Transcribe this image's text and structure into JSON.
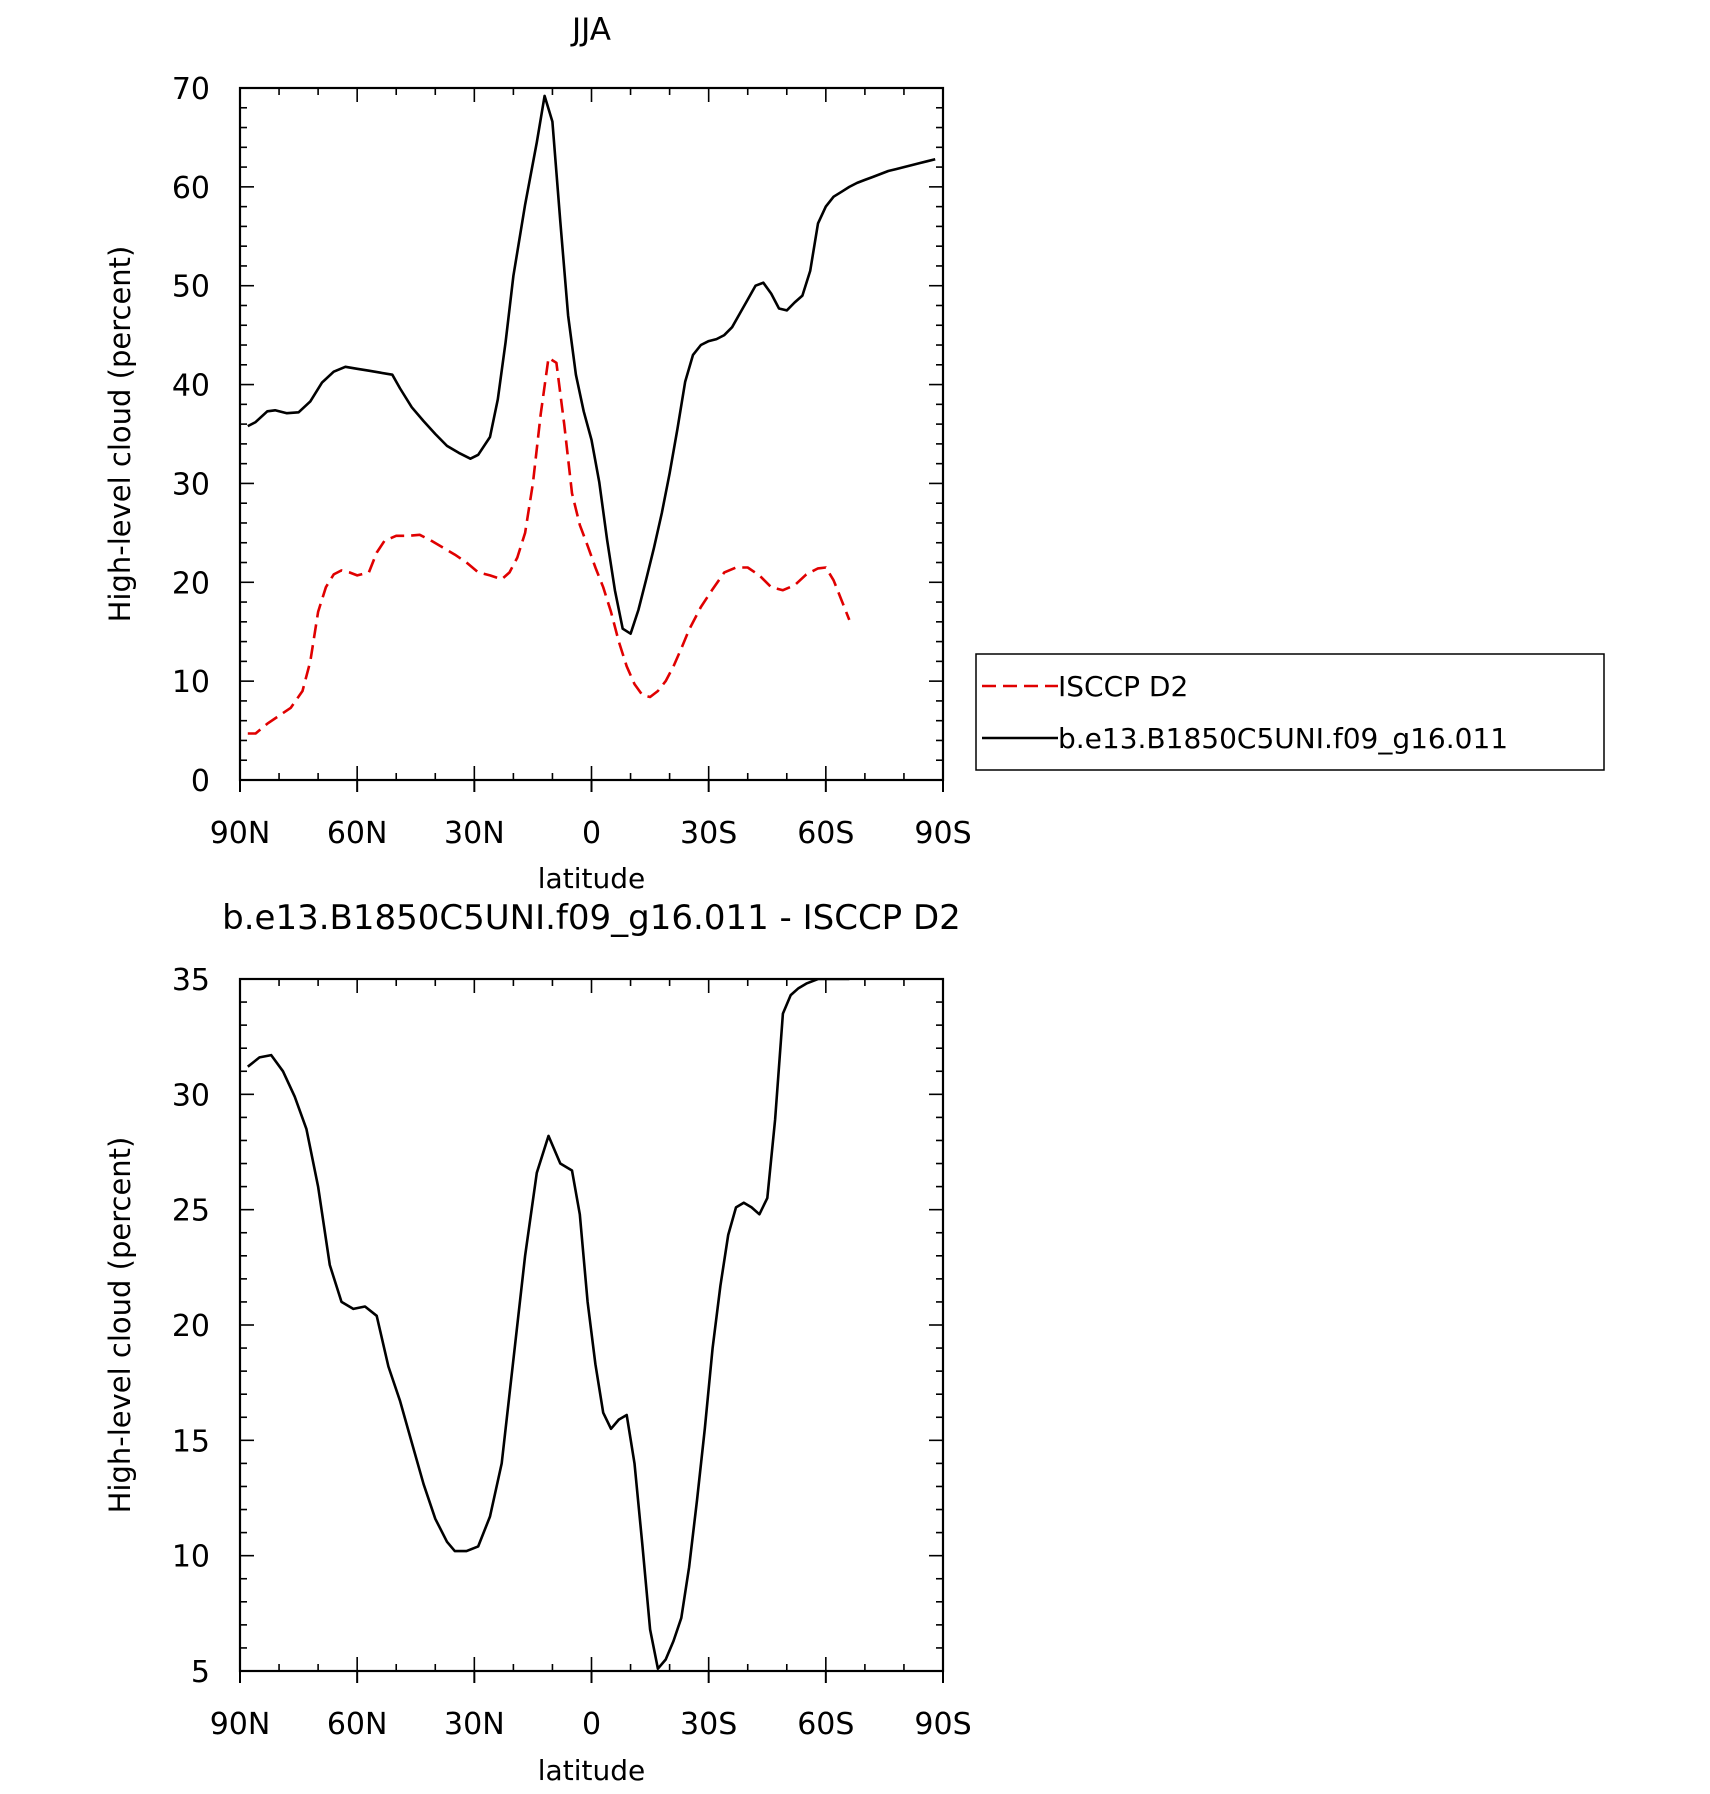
{
  "chart_data": [
    {
      "type": "line",
      "title": "JJA",
      "xlabel": "latitude",
      "ylabel": "High-level cloud (percent)",
      "xlim": [
        90,
        -90
      ],
      "ylim": [
        0,
        70
      ],
      "x_ticks": [
        {
          "value": 90,
          "label": "90N"
        },
        {
          "value": 60,
          "label": "60N"
        },
        {
          "value": 30,
          "label": "30N"
        },
        {
          "value": 0,
          "label": "0"
        },
        {
          "value": -30,
          "label": "30S"
        },
        {
          "value": -60,
          "label": "60S"
        },
        {
          "value": -90,
          "label": "90S"
        }
      ],
      "y_ticks": [
        0,
        10,
        20,
        30,
        40,
        50,
        60,
        70
      ],
      "grid": false,
      "legend": {
        "placement": "right",
        "entries": [
          {
            "label": "ISCCP D2",
            "color": "#e00000",
            "dash": "dashed"
          },
          {
            "label": "b.e13.B1850C5UNI.f09_g16.011",
            "color": "#000000",
            "dash": "solid"
          }
        ]
      },
      "series": [
        {
          "name": "ISCCP D2",
          "color": "#e00000",
          "dash": "dashed",
          "x": [
            88,
            86,
            83,
            80,
            77,
            74,
            72,
            70,
            68,
            66,
            64,
            62,
            60,
            57,
            55,
            53,
            50,
            47,
            44,
            41,
            38,
            35,
            32,
            29,
            26,
            23,
            21,
            19,
            17,
            15,
            13,
            11,
            9,
            7,
            5,
            3,
            1,
            -1,
            -3,
            -5,
            -7,
            -9,
            -11,
            -13,
            -15,
            -17,
            -19,
            -21,
            -23,
            -25,
            -28,
            -31,
            -34,
            -37,
            -40,
            -43,
            -46,
            -49,
            -52,
            -55,
            -58,
            -60,
            -62,
            -64,
            -66
          ],
          "y": [
            4.7,
            4.7,
            5.7,
            6.5,
            7.3,
            9,
            12,
            17,
            19.5,
            20.8,
            21.2,
            21,
            20.7,
            21,
            23,
            24.2,
            24.7,
            24.7,
            24.8,
            24.2,
            23.5,
            22.8,
            22,
            21,
            20.7,
            20.3,
            21,
            22.5,
            25,
            30,
            37,
            42.7,
            42.2,
            36,
            29,
            25.8,
            23.7,
            21.5,
            19.5,
            17,
            14,
            11.5,
            9.7,
            8.6,
            8.4,
            9,
            10,
            11.5,
            13.3,
            15.2,
            17.5,
            19.3,
            21,
            21.5,
            21.5,
            20.7,
            19.5,
            19.2,
            19.7,
            20.8,
            21.4,
            21.5,
            20.2,
            18.2,
            16.2
          ]
        },
        {
          "name": "b.e13.B1850C5UNI.f09_g16.011",
          "color": "#000000",
          "dash": "solid",
          "x": [
            88,
            86,
            83,
            81,
            78,
            75,
            72,
            69,
            66,
            63,
            60,
            57,
            54,
            51,
            49,
            46,
            43,
            40,
            37,
            34,
            31,
            29,
            26,
            24,
            22,
            20,
            17,
            14,
            12,
            10,
            8,
            6,
            4,
            2,
            0,
            -2,
            -4,
            -6,
            -8,
            -10,
            -12,
            -14,
            -16,
            -18,
            -20,
            -22,
            -24,
            -26,
            -28,
            -30,
            -32,
            -34,
            -36,
            -38,
            -40,
            -42,
            -44,
            -46,
            -48,
            -50,
            -52,
            -54,
            -56,
            -58,
            -60,
            -62,
            -64,
            -66,
            -68,
            -70,
            -72,
            -74,
            -76,
            -78,
            -80,
            -82,
            -84,
            -86,
            -88
          ],
          "y": [
            35.8,
            36.2,
            37.3,
            37.4,
            37.1,
            37.2,
            38.3,
            40.2,
            41.3,
            41.8,
            41.6,
            41.4,
            41.2,
            41,
            39.6,
            37.7,
            36.3,
            35,
            33.8,
            33.1,
            32.5,
            32.9,
            34.7,
            38.5,
            44.3,
            51,
            58.2,
            64.5,
            69.2,
            66.6,
            56.5,
            47,
            41,
            37.3,
            34.4,
            30.1,
            24.3,
            19.2,
            15.3,
            14.8,
            17.2,
            20.3,
            23.5,
            27,
            31,
            35.5,
            40.3,
            43,
            44,
            44.4,
            44.6,
            45,
            45.8,
            47.2,
            48.6,
            50,
            50.3,
            49.2,
            47.7,
            47.5,
            48.3,
            49,
            51.5,
            56.3,
            58,
            59,
            59.5,
            60,
            60.4,
            60.7,
            61,
            61.3,
            61.6,
            61.8,
            62,
            62.2,
            62.4,
            62.6,
            62.8
          ]
        }
      ]
    },
    {
      "type": "line",
      "title": "b.e13.B1850C5UNI.f09_g16.011 - ISCCP D2",
      "xlabel": "latitude",
      "ylabel": "High-level cloud (percent)",
      "xlim": [
        90,
        -90
      ],
      "ylim": [
        5,
        35
      ],
      "x_ticks": [
        {
          "value": 90,
          "label": "90N"
        },
        {
          "value": 60,
          "label": "60N"
        },
        {
          "value": 30,
          "label": "30N"
        },
        {
          "value": 0,
          "label": "0"
        },
        {
          "value": -30,
          "label": "30S"
        },
        {
          "value": -60,
          "label": "60S"
        },
        {
          "value": -90,
          "label": "90S"
        }
      ],
      "y_ticks": [
        5,
        10,
        15,
        20,
        25,
        30,
        35
      ],
      "grid": false,
      "series": [
        {
          "color": "#000000",
          "dash": "solid",
          "x": [
            88,
            85,
            82,
            79,
            76,
            73,
            70,
            67,
            64,
            61,
            58,
            55,
            52,
            49,
            46,
            43,
            40,
            37,
            35,
            32,
            29,
            26,
            23,
            20,
            17,
            14,
            11,
            8,
            5,
            3,
            1,
            -1,
            -3,
            -5,
            -7,
            -9,
            -11,
            -13,
            -15,
            -17,
            -19,
            -21,
            -23,
            -25,
            -27,
            -29,
            -31,
            -33,
            -35,
            -37,
            -39,
            -41,
            -43,
            -45,
            -47,
            -49,
            -51,
            -53,
            -55,
            -58,
            -60,
            -62,
            -64,
            -66
          ],
          "y": [
            31.2,
            31.6,
            31.7,
            31,
            29.9,
            28.5,
            26,
            22.6,
            21,
            20.7,
            20.8,
            20.4,
            18.2,
            16.7,
            14.9,
            13.1,
            11.6,
            10.6,
            10.2,
            10.2,
            10.4,
            11.7,
            14,
            18.5,
            23,
            26.6,
            28.2,
            27,
            26.7,
            24.8,
            21,
            18.3,
            16.2,
            15.5,
            15.9,
            16.1,
            14,
            10.5,
            6.8,
            5.1,
            5.5,
            6.3,
            7.3,
            9.5,
            12.4,
            15.5,
            19,
            21.7,
            23.9,
            25.1,
            25.3,
            25.1,
            24.8,
            25.5,
            28.9,
            33.5,
            34.3,
            34.6,
            34.8,
            35,
            35,
            35,
            35,
            35
          ]
        }
      ]
    }
  ]
}
